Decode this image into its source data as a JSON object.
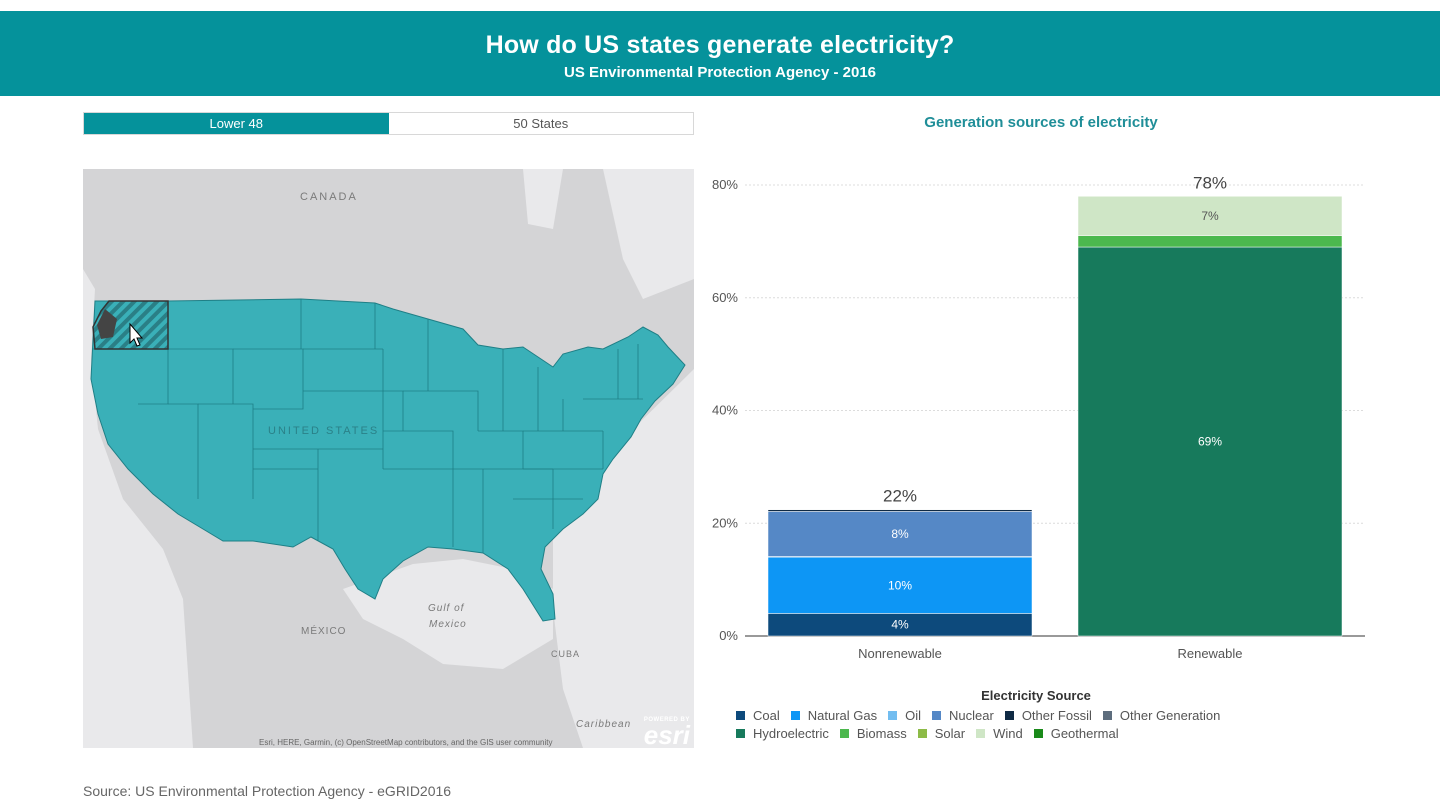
{
  "header": {
    "title": "How do US states generate electricity?",
    "subtitle": "US Environmental Protection Agency - 2016"
  },
  "toggle": {
    "options": [
      "Lower 48",
      "50 States"
    ],
    "selected": "Lower 48"
  },
  "map": {
    "labels": {
      "canada": "CANADA",
      "usa": "UNITED STATES",
      "mexico": "MÉXICO",
      "gulf1": "Gulf of",
      "gulf2": "Mexico",
      "cuba": "CUBA",
      "caribbean": "Caribbean"
    },
    "attribution": "Esri, HERE, Garmin, (c) OpenStreetMap contributors, and the GIS user community",
    "esri_powered": "POWERED BY",
    "esri_logo": "esri",
    "selected_state_icon": "hatched-selection",
    "colors": {
      "land": "#d4d4d6",
      "state_fill": "#3ab0b8",
      "state_stroke": "#1f7f86"
    }
  },
  "chart": {
    "title": "Generation sources of electricity"
  },
  "chart_data": {
    "type": "bar",
    "stacked": true,
    "categories": [
      "Nonrenewable",
      "Renewable"
    ],
    "ylim": [
      0,
      80
    ],
    "yticks": [
      "0%",
      "20%",
      "40%",
      "60%",
      "80%"
    ],
    "ytick_values": [
      0,
      20,
      40,
      60,
      80
    ],
    "totals": [
      "22%",
      "78%"
    ],
    "legend_title": "Electricity Source",
    "legend_placement": "bottom",
    "grid": true,
    "series": [
      {
        "name": "Coal",
        "color": "#0d4a7c",
        "values": [
          4,
          0
        ],
        "labels": [
          "4%",
          ""
        ]
      },
      {
        "name": "Natural Gas",
        "color": "#0d96f5",
        "values": [
          10,
          0
        ],
        "labels": [
          "10%",
          ""
        ]
      },
      {
        "name": "Oil",
        "color": "#72bdf0",
        "values": [
          0.1,
          0
        ],
        "labels": [
          "",
          ""
        ]
      },
      {
        "name": "Nuclear",
        "color": "#5588c6",
        "values": [
          8,
          0
        ],
        "labels": [
          "8%",
          ""
        ]
      },
      {
        "name": "Other Fossil",
        "color": "#0f2a44",
        "values": [
          0.3,
          0
        ],
        "labels": [
          "",
          ""
        ]
      },
      {
        "name": "Other Generation",
        "color": "#5d6d7d",
        "values": [
          0,
          0
        ],
        "labels": [
          "",
          ""
        ]
      },
      {
        "name": "Hydroelectric",
        "color": "#177a5c",
        "values": [
          0,
          69
        ],
        "labels": [
          "",
          "69%"
        ]
      },
      {
        "name": "Biomass",
        "color": "#4cb84e",
        "values": [
          0,
          2
        ],
        "labels": [
          "",
          ""
        ]
      },
      {
        "name": "Solar",
        "color": "#8dbb47",
        "values": [
          0,
          0
        ],
        "labels": [
          "",
          ""
        ]
      },
      {
        "name": "Wind",
        "color": "#cfe6c6",
        "values": [
          0,
          7
        ],
        "labels": [
          "",
          "7%"
        ]
      },
      {
        "name": "Geothermal",
        "color": "#1a8a1a",
        "values": [
          0,
          0
        ],
        "labels": [
          "",
          ""
        ]
      }
    ]
  },
  "footer": {
    "source": "Source: US Environmental Protection Agency - eGRID2016"
  }
}
